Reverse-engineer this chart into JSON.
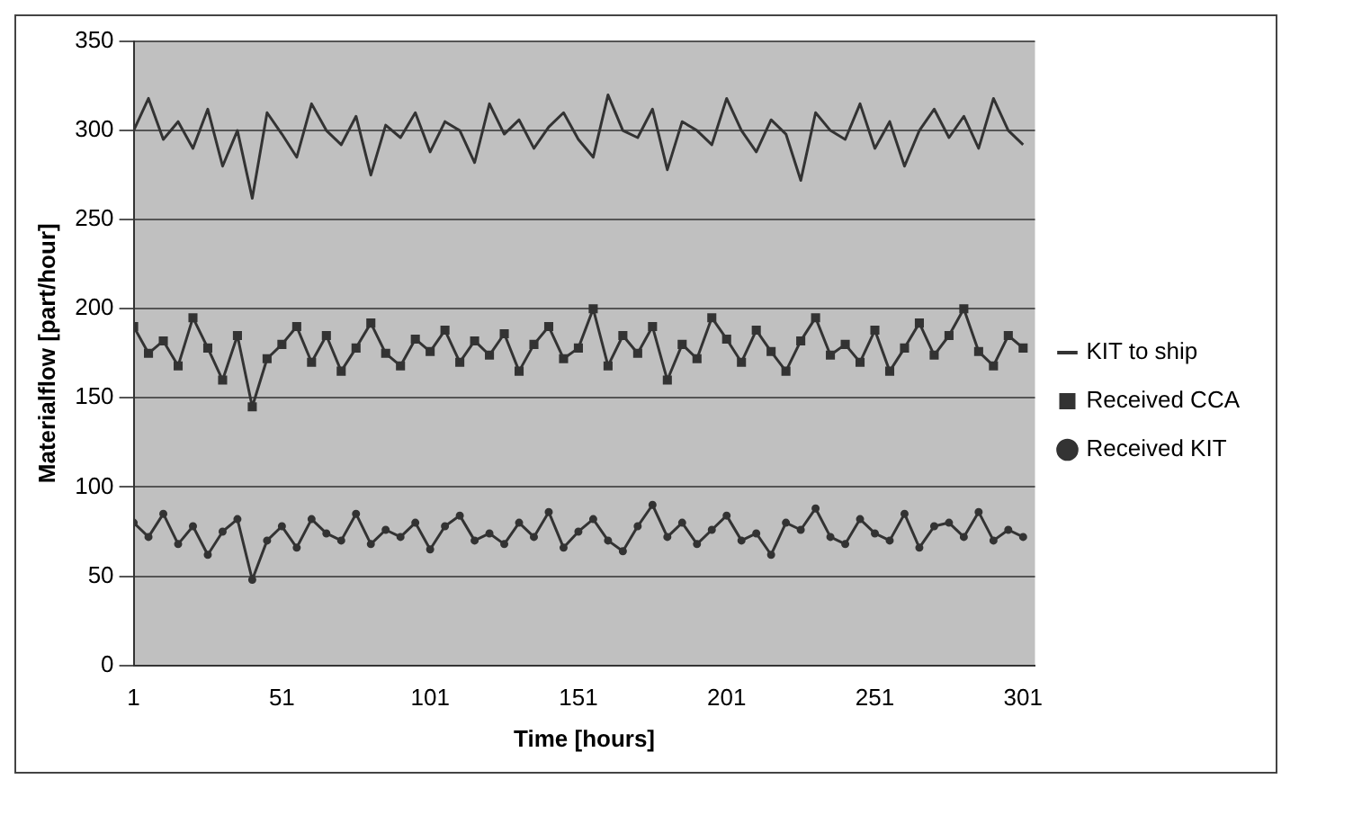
{
  "chart_data": {
    "type": "line",
    "xlabel": "Time [hours]",
    "ylabel": "Materialflow [part/hour]",
    "x": [
      1,
      6,
      11,
      16,
      21,
      26,
      31,
      36,
      41,
      46,
      51,
      56,
      61,
      66,
      71,
      76,
      81,
      86,
      91,
      96,
      101,
      106,
      111,
      116,
      121,
      126,
      131,
      136,
      141,
      146,
      151,
      156,
      161,
      166,
      171,
      176,
      181,
      186,
      191,
      196,
      201,
      206,
      211,
      216,
      221,
      226,
      231,
      236,
      241,
      246,
      251,
      256,
      261,
      266,
      271,
      276,
      281,
      286,
      291,
      296,
      301
    ],
    "xlim": [
      1,
      305
    ],
    "xticks": [
      1,
      51,
      101,
      151,
      201,
      251,
      301
    ],
    "ylim": [
      0,
      350
    ],
    "yticks": [
      0,
      50,
      100,
      150,
      200,
      250,
      300,
      350
    ],
    "grid": "y",
    "legend": "right",
    "line_style": "solid",
    "series": [
      {
        "name": "KIT to ship",
        "color": "#333333",
        "marker": "none",
        "values": [
          300,
          318,
          295,
          305,
          290,
          312,
          280,
          300,
          262,
          310,
          298,
          285,
          315,
          300,
          292,
          308,
          275,
          303,
          296,
          310,
          288,
          305,
          300,
          282,
          315,
          298,
          306,
          290,
          302,
          310,
          295,
          285,
          320,
          300,
          296,
          312,
          278,
          305,
          300,
          292,
          318,
          300,
          288,
          306,
          298,
          272,
          310,
          300,
          295,
          315,
          290,
          305,
          280,
          300,
          312,
          296,
          308,
          290,
          318,
          300,
          292
        ]
      },
      {
        "name": "Received CCA",
        "color": "#333333",
        "marker": "square",
        "values": [
          190,
          175,
          182,
          168,
          195,
          178,
          160,
          185,
          145,
          172,
          180,
          190,
          170,
          185,
          165,
          178,
          192,
          175,
          168,
          183,
          176,
          188,
          170,
          182,
          174,
          186,
          165,
          180,
          190,
          172,
          178,
          200,
          168,
          185,
          175,
          190,
          160,
          180,
          172,
          195,
          183,
          170,
          188,
          176,
          165,
          182,
          195,
          174,
          180,
          170,
          188,
          165,
          178,
          192,
          174,
          185,
          200,
          176,
          168,
          185,
          178
        ]
      },
      {
        "name": "Received KIT",
        "color": "#333333",
        "marker": "circle",
        "values": [
          80,
          72,
          85,
          68,
          78,
          62,
          75,
          82,
          48,
          70,
          78,
          66,
          82,
          74,
          70,
          85,
          68,
          76,
          72,
          80,
          65,
          78,
          84,
          70,
          74,
          68,
          80,
          72,
          86,
          66,
          75,
          82,
          70,
          64,
          78,
          90,
          72,
          80,
          68,
          76,
          84,
          70,
          74,
          62,
          80,
          76,
          88,
          72,
          68,
          82,
          74,
          70,
          85,
          66,
          78,
          80,
          72,
          86,
          70,
          76,
          72
        ]
      }
    ]
  }
}
